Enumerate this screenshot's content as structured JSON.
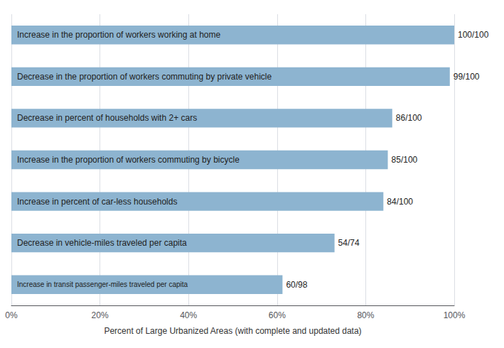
{
  "chart_data": {
    "type": "bar",
    "orientation": "horizontal",
    "categories": [
      "Increase in transit passenger-miles traveled per capita",
      "Decrease in vehicle-miles traveled per capita",
      "Increase in percent of car-less households",
      "Increase in the proportion of workers commuting by bicycle",
      "Decrease in percent of households with 2+ cars",
      "Decrease in the proportion of workers commuting by private vehicle",
      "Increase in the proportion of workers working at home"
    ],
    "values": [
      61.22,
      72.97,
      84.0,
      85.0,
      86.0,
      99.0,
      100.0
    ],
    "value_labels": [
      "60/98",
      "54/74",
      "84/100",
      "85/100",
      "86/100",
      "99/100",
      "100/100"
    ],
    "color": "#8db4d0",
    "xlabel": "Percent of Large Urbanized Areas (with complete and updated data)",
    "xlim": [
      0,
      100
    ],
    "xticks": [
      {
        "value": 0,
        "label": "0%"
      },
      {
        "value": 20,
        "label": "20%"
      },
      {
        "value": 40,
        "label": "40%"
      },
      {
        "value": 60,
        "label": "60%"
      },
      {
        "value": 80,
        "label": "80%"
      },
      {
        "value": 100,
        "label": "100%"
      }
    ],
    "grid": true,
    "data_labels": true
  }
}
